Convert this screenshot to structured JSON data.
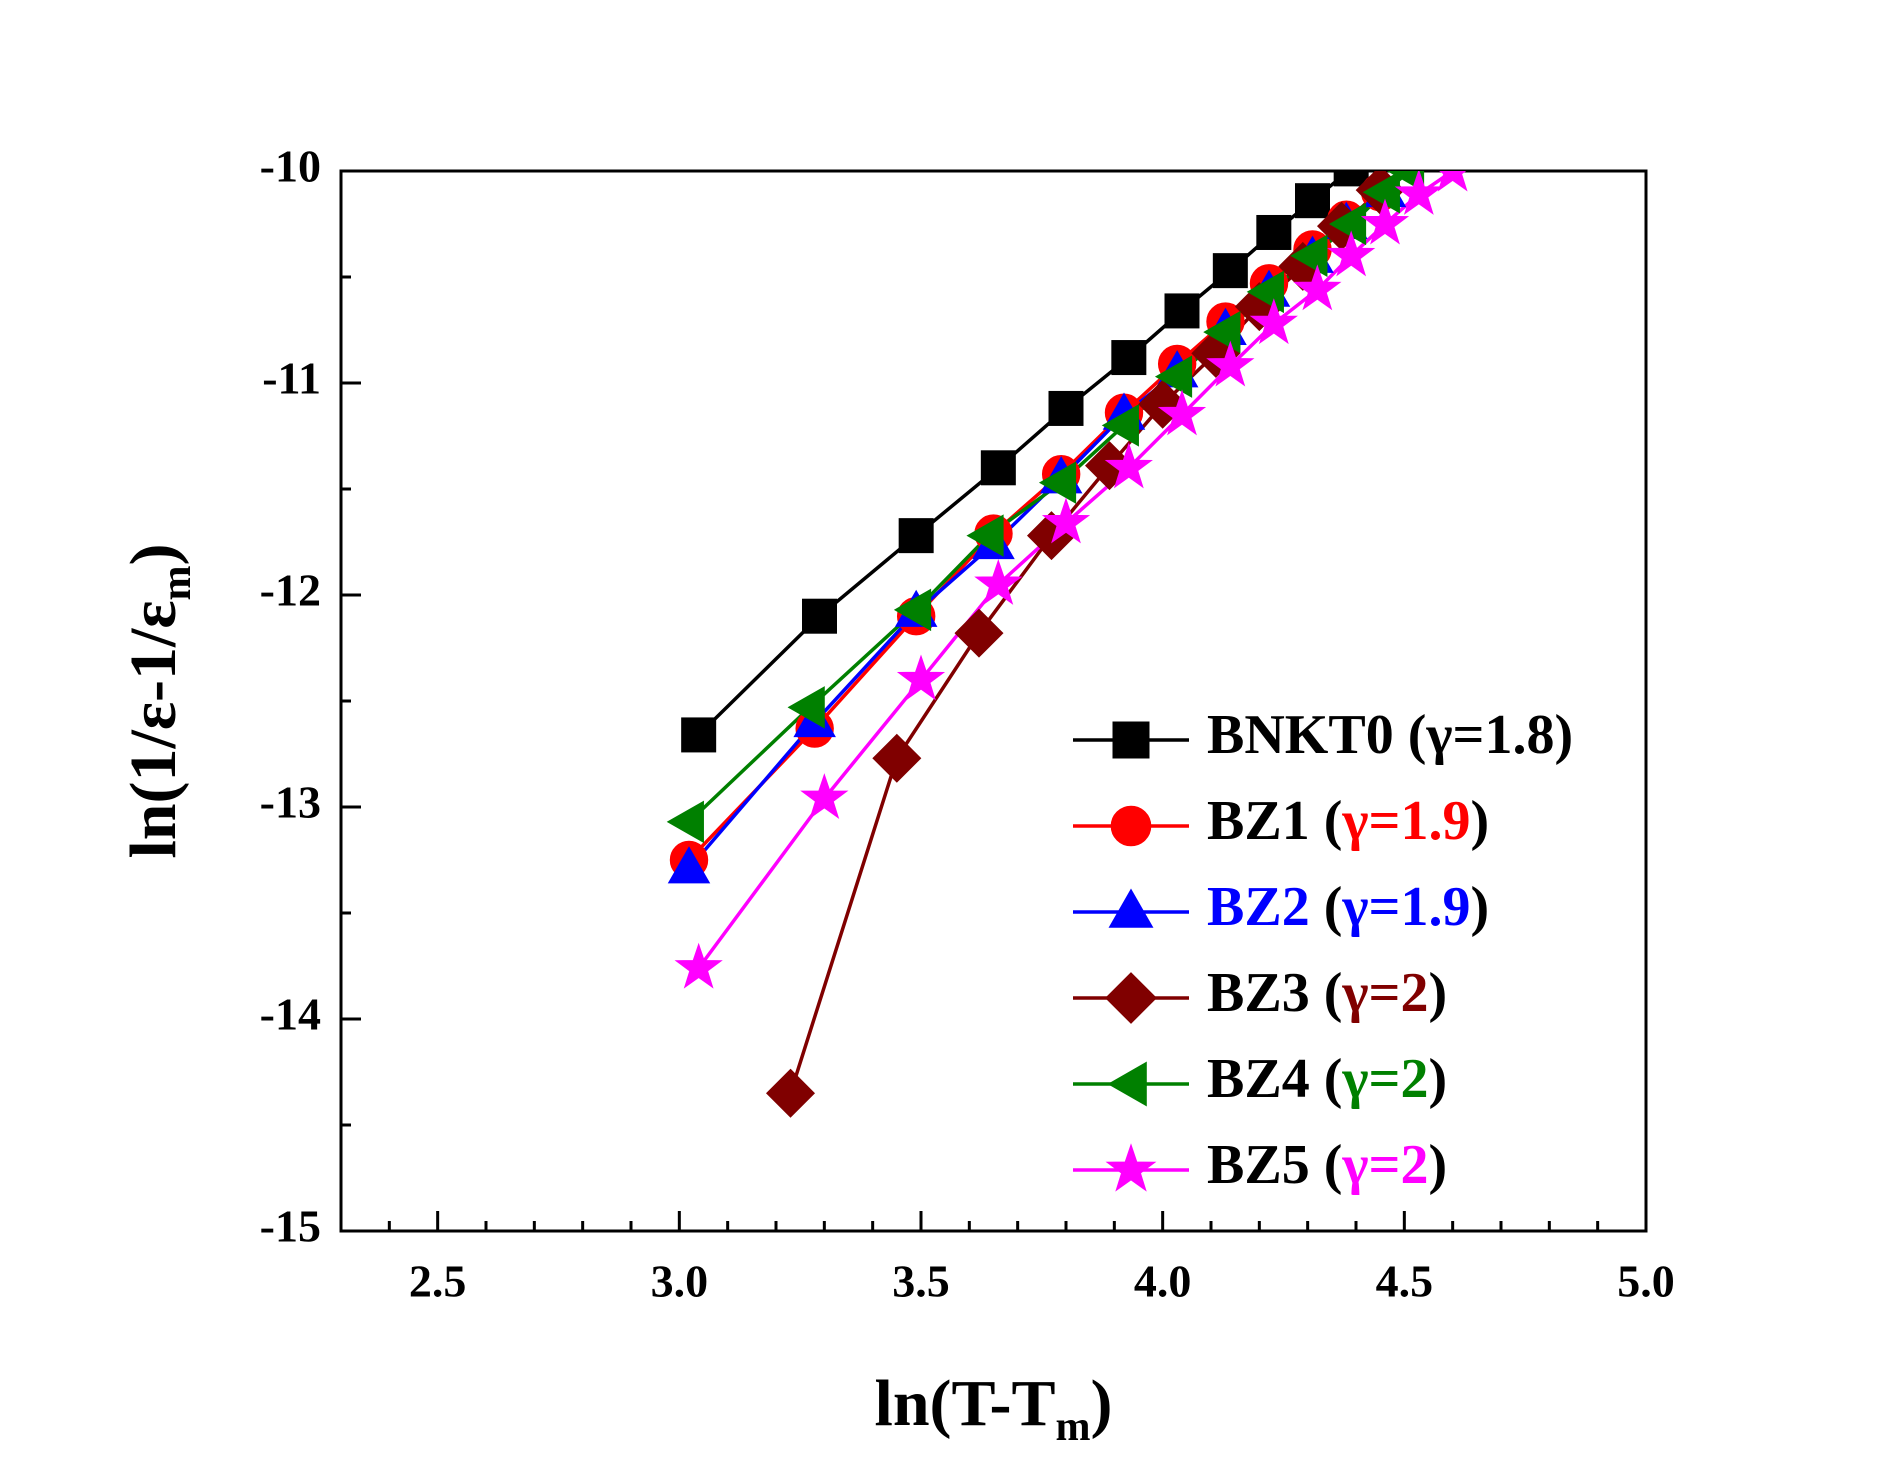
{
  "chart_data": {
    "type": "line",
    "xlabel": {
      "text": "ln(T-T",
      "sub": "m",
      "end": ")"
    },
    "ylabel": {
      "text": "ln(1/ε-1/ε",
      "sub": "m",
      "end": ")"
    },
    "xlim": [
      2.3,
      5.0
    ],
    "ylim": [
      -15,
      -10
    ],
    "xticks": [
      2.5,
      {
        "value": 3,
        "label": "3.0"
      },
      3.5,
      {
        "value": 4,
        "label": "4.0"
      },
      4.5,
      {
        "value": 5,
        "label": "5.0"
      }
    ],
    "yticks": [
      -15,
      -14,
      -13,
      -12,
      -11,
      -10
    ],
    "xticks_minor": [
      2.4,
      2.6,
      2.7,
      2.8,
      2.9,
      3.1,
      3.2,
      3.3,
      3.4,
      3.6,
      3.7,
      3.8,
      3.9,
      4.1,
      4.2,
      4.3,
      4.4,
      4.6,
      4.7,
      4.8,
      4.9
    ],
    "yticks_minor": [
      -14.5,
      -13.5,
      -12.5,
      -11.5,
      -10.5
    ],
    "note_brackets": [
      "(",
      ")"
    ],
    "series": [
      {
        "name": "BNKT0",
        "note": "γ=1.8",
        "color": "#000000",
        "name_color": "#000000",
        "note_color": "#000000",
        "marker": "square",
        "x": [
          3.04,
          3.29,
          3.49,
          3.66,
          3.8,
          3.93,
          4.04,
          4.14,
          4.23,
          4.31,
          4.39
        ],
        "values": [
          -12.66,
          -12.1,
          -11.72,
          -11.4,
          -11.12,
          -10.88,
          -10.66,
          -10.47,
          -10.29,
          -10.14,
          -9.99
        ]
      },
      {
        "name": "BZ1",
        "note": "γ=1.9",
        "color": "#ff0000",
        "name_color": "#000000",
        "note_color": "#ff0000",
        "marker": "circle",
        "x": [
          3.02,
          3.28,
          3.49,
          3.65,
          3.79,
          3.92,
          4.03,
          4.13,
          4.22,
          4.31,
          4.38,
          4.45
        ],
        "values": [
          -13.25,
          -12.63,
          -12.1,
          -11.71,
          -11.43,
          -11.14,
          -10.91,
          -10.71,
          -10.53,
          -10.37,
          -10.23,
          -10.1
        ]
      },
      {
        "name": "BZ2",
        "note": "γ=1.9",
        "color": "#0000ff",
        "name_color": "#0000ff",
        "note_color": "#0000ff",
        "marker": "triangle",
        "x": [
          3.02,
          3.28,
          3.49,
          3.65,
          3.79,
          3.92,
          4.03,
          4.13,
          4.22,
          4.31,
          4.38,
          4.46
        ],
        "values": [
          -13.29,
          -12.6,
          -12.08,
          -11.76,
          -11.45,
          -11.15,
          -10.95,
          -10.75,
          -10.57,
          -10.41,
          -10.25,
          -10.1
        ]
      },
      {
        "name": "BZ3",
        "note": "γ=2",
        "color": "#800000",
        "name_color": "#000000",
        "note_color": "#800000",
        "marker": "diamond",
        "x": [
          3.23,
          3.45,
          3.62,
          3.77,
          3.89,
          4.0,
          4.11,
          4.2,
          4.29,
          4.37,
          4.45
        ],
        "values": [
          -14.35,
          -12.77,
          -12.18,
          -11.72,
          -11.39,
          -11.1,
          -10.86,
          -10.64,
          -10.45,
          -10.26,
          -10.09
        ]
      },
      {
        "name": "BZ4",
        "note": "γ=2",
        "color": "#008000",
        "name_color": "#000000",
        "note_color": "#008000",
        "marker": "left-triangle",
        "x": [
          3.02,
          3.27,
          3.49,
          3.64,
          3.79,
          3.92,
          4.03,
          4.13,
          4.22,
          4.31,
          4.39,
          4.46,
          4.51
        ],
        "values": [
          -13.07,
          -12.53,
          -12.07,
          -11.72,
          -11.47,
          -11.2,
          -10.97,
          -10.76,
          -10.57,
          -10.4,
          -10.25,
          -10.1,
          -10.0
        ]
      },
      {
        "name": "BZ5",
        "note": "γ=2",
        "color": "#ff00ff",
        "name_color": "#000000",
        "note_color": "#ff00ff",
        "marker": "star",
        "x": [
          3.04,
          3.3,
          3.5,
          3.66,
          3.8,
          3.93,
          4.04,
          4.14,
          4.23,
          4.32,
          4.39,
          4.46,
          4.53,
          4.6
        ],
        "values": [
          -13.76,
          -12.96,
          -12.4,
          -11.95,
          -11.66,
          -11.4,
          -11.15,
          -10.92,
          -10.72,
          -10.56,
          -10.4,
          -10.25,
          -10.11,
          -10.0
        ]
      }
    ]
  }
}
